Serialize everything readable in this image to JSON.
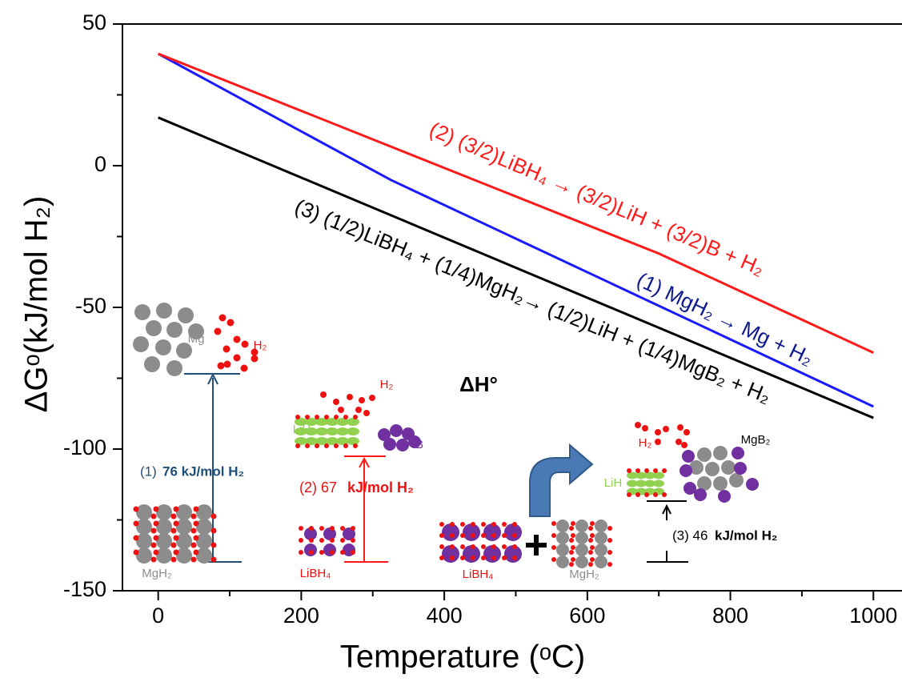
{
  "chart_data": {
    "type": "line",
    "x_label": "Temperature (ᵒC)",
    "y_label": "ΔGᵒ(kJ/mol H₂)",
    "xlim": [
      -50,
      1040
    ],
    "ylim": [
      -150,
      50
    ],
    "xticks": [
      0,
      200,
      400,
      600,
      800,
      1000
    ],
    "xminorticks": [
      100,
      300,
      500,
      700,
      900
    ],
    "yticks": [
      50,
      0,
      -50,
      -100,
      -150
    ],
    "yminorticks": [
      25,
      -25,
      -75,
      -125
    ],
    "series": [
      {
        "name": "(1) MgH₂ → Mg + H₂",
        "color": "#1a1aff",
        "x": [
          0,
          325,
          1000
        ],
        "values": [
          39.5,
          -5,
          -85
        ]
      },
      {
        "name": "(2) (3/2)LiBH₄ → (3/2)LiH + (3/2)B + H₂",
        "color": "#ff1a1a",
        "x": [
          0,
          700,
          1000
        ],
        "values": [
          39.5,
          -31,
          -66
        ]
      },
      {
        "name": "(3) (1/2)LiBH₄ + (1/4)MgH₂→ (1/2)LiH + (1/4)MgB₂ + H₂",
        "color": "#000000",
        "x": [
          0,
          1000
        ],
        "values": [
          17,
          -89
        ]
      }
    ],
    "annotations": [
      "ΔH°",
      "Mg",
      "H₂",
      "MgH₂",
      "(1)",
      "76 kJ/mol H₂",
      "H₂",
      "LiH",
      "B",
      "LiBH₄",
      "(2) 67",
      "kJ/mol H₂",
      "LiBH₄",
      "MgH₂",
      "H₂",
      "MgB₂",
      "LiH",
      "(3) 46",
      "kJ/mol H₂"
    ]
  }
}
